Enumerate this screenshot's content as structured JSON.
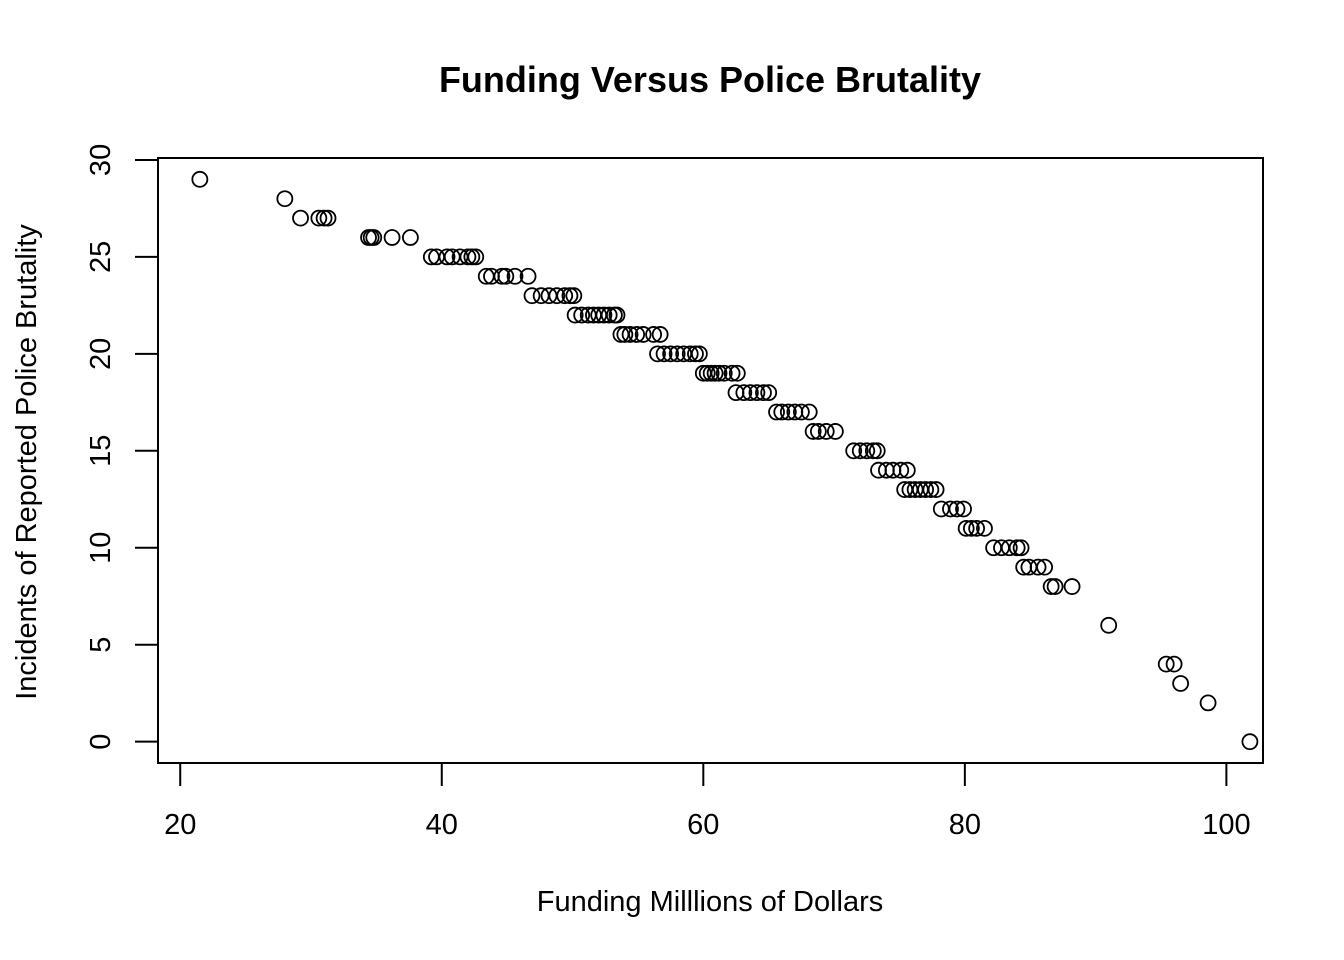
{
  "chart_data": {
    "type": "scatter",
    "title": "Funding Versus Police Brutality",
    "xlabel": "Funding Milllions of Dollars",
    "ylabel": "Incidents of Reported Police Brutality",
    "xlim": [
      18.3,
      102.8
    ],
    "ylim": [
      -1.1,
      30.1
    ],
    "x_ticks": [
      20,
      40,
      60,
      80,
      100
    ],
    "y_ticks": [
      0,
      5,
      10,
      15,
      20,
      25,
      30
    ],
    "grid": false,
    "legend": "none",
    "marker": "open-circle",
    "color": "#000000",
    "points": [
      {
        "x": 21.5,
        "y": 29
      },
      {
        "x": 28.0,
        "y": 28
      },
      {
        "x": 29.2,
        "y": 27
      },
      {
        "x": 30.6,
        "y": 27
      },
      {
        "x": 31.0,
        "y": 27
      },
      {
        "x": 31.3,
        "y": 27
      },
      {
        "x": 34.4,
        "y": 26
      },
      {
        "x": 34.6,
        "y": 26
      },
      {
        "x": 34.8,
        "y": 26
      },
      {
        "x": 36.2,
        "y": 26
      },
      {
        "x": 37.6,
        "y": 26
      },
      {
        "x": 39.2,
        "y": 25
      },
      {
        "x": 39.6,
        "y": 25
      },
      {
        "x": 40.4,
        "y": 25
      },
      {
        "x": 40.8,
        "y": 25
      },
      {
        "x": 41.4,
        "y": 25
      },
      {
        "x": 42.0,
        "y": 25
      },
      {
        "x": 42.3,
        "y": 25
      },
      {
        "x": 42.6,
        "y": 25
      },
      {
        "x": 43.4,
        "y": 24
      },
      {
        "x": 43.8,
        "y": 24
      },
      {
        "x": 44.6,
        "y": 24
      },
      {
        "x": 44.9,
        "y": 24
      },
      {
        "x": 45.6,
        "y": 24
      },
      {
        "x": 46.6,
        "y": 24
      },
      {
        "x": 46.9,
        "y": 23
      },
      {
        "x": 47.6,
        "y": 23
      },
      {
        "x": 48.2,
        "y": 23
      },
      {
        "x": 48.8,
        "y": 23
      },
      {
        "x": 49.4,
        "y": 23
      },
      {
        "x": 49.8,
        "y": 23
      },
      {
        "x": 50.1,
        "y": 23
      },
      {
        "x": 50.2,
        "y": 22
      },
      {
        "x": 50.7,
        "y": 22
      },
      {
        "x": 51.2,
        "y": 22
      },
      {
        "x": 51.6,
        "y": 22
      },
      {
        "x": 52.0,
        "y": 22
      },
      {
        "x": 52.4,
        "y": 22
      },
      {
        "x": 52.8,
        "y": 22
      },
      {
        "x": 53.2,
        "y": 22
      },
      {
        "x": 53.4,
        "y": 22
      },
      {
        "x": 53.7,
        "y": 21
      },
      {
        "x": 54.0,
        "y": 21
      },
      {
        "x": 54.4,
        "y": 21
      },
      {
        "x": 54.9,
        "y": 21
      },
      {
        "x": 55.4,
        "y": 21
      },
      {
        "x": 56.2,
        "y": 21
      },
      {
        "x": 56.7,
        "y": 21
      },
      {
        "x": 56.5,
        "y": 20
      },
      {
        "x": 57.0,
        "y": 20
      },
      {
        "x": 57.5,
        "y": 20
      },
      {
        "x": 58.0,
        "y": 20
      },
      {
        "x": 58.5,
        "y": 20
      },
      {
        "x": 59.0,
        "y": 20
      },
      {
        "x": 59.4,
        "y": 20
      },
      {
        "x": 59.7,
        "y": 20
      },
      {
        "x": 60.0,
        "y": 19
      },
      {
        "x": 60.3,
        "y": 19
      },
      {
        "x": 60.6,
        "y": 19
      },
      {
        "x": 60.9,
        "y": 19
      },
      {
        "x": 61.2,
        "y": 19
      },
      {
        "x": 61.6,
        "y": 19
      },
      {
        "x": 62.2,
        "y": 19
      },
      {
        "x": 62.6,
        "y": 19
      },
      {
        "x": 62.5,
        "y": 18
      },
      {
        "x": 63.1,
        "y": 18
      },
      {
        "x": 63.6,
        "y": 18
      },
      {
        "x": 64.1,
        "y": 18
      },
      {
        "x": 64.6,
        "y": 18
      },
      {
        "x": 65.0,
        "y": 18
      },
      {
        "x": 65.6,
        "y": 17
      },
      {
        "x": 66.0,
        "y": 17
      },
      {
        "x": 66.5,
        "y": 17
      },
      {
        "x": 67.0,
        "y": 17
      },
      {
        "x": 67.5,
        "y": 17
      },
      {
        "x": 68.1,
        "y": 17
      },
      {
        "x": 68.4,
        "y": 16
      },
      {
        "x": 68.8,
        "y": 16
      },
      {
        "x": 69.4,
        "y": 16
      },
      {
        "x": 70.1,
        "y": 16
      },
      {
        "x": 71.5,
        "y": 15
      },
      {
        "x": 72.0,
        "y": 15
      },
      {
        "x": 72.5,
        "y": 15
      },
      {
        "x": 73.0,
        "y": 15
      },
      {
        "x": 73.3,
        "y": 15
      },
      {
        "x": 73.4,
        "y": 14
      },
      {
        "x": 74.0,
        "y": 14
      },
      {
        "x": 74.5,
        "y": 14
      },
      {
        "x": 75.1,
        "y": 14
      },
      {
        "x": 75.6,
        "y": 14
      },
      {
        "x": 75.4,
        "y": 13
      },
      {
        "x": 75.8,
        "y": 13
      },
      {
        "x": 76.2,
        "y": 13
      },
      {
        "x": 76.6,
        "y": 13
      },
      {
        "x": 77.0,
        "y": 13
      },
      {
        "x": 77.4,
        "y": 13
      },
      {
        "x": 77.8,
        "y": 13
      },
      {
        "x": 78.2,
        "y": 12
      },
      {
        "x": 78.9,
        "y": 12
      },
      {
        "x": 79.4,
        "y": 12
      },
      {
        "x": 79.9,
        "y": 12
      },
      {
        "x": 80.1,
        "y": 11
      },
      {
        "x": 80.5,
        "y": 11
      },
      {
        "x": 80.9,
        "y": 11
      },
      {
        "x": 81.5,
        "y": 11
      },
      {
        "x": 82.2,
        "y": 10
      },
      {
        "x": 82.8,
        "y": 10
      },
      {
        "x": 83.4,
        "y": 10
      },
      {
        "x": 84.0,
        "y": 10
      },
      {
        "x": 84.3,
        "y": 10
      },
      {
        "x": 84.5,
        "y": 9
      },
      {
        "x": 84.9,
        "y": 9
      },
      {
        "x": 85.6,
        "y": 9
      },
      {
        "x": 86.1,
        "y": 9
      },
      {
        "x": 86.6,
        "y": 8
      },
      {
        "x": 86.9,
        "y": 8
      },
      {
        "x": 88.2,
        "y": 8
      },
      {
        "x": 91.0,
        "y": 6
      },
      {
        "x": 95.4,
        "y": 4
      },
      {
        "x": 96.0,
        "y": 4
      },
      {
        "x": 96.5,
        "y": 3
      },
      {
        "x": 98.6,
        "y": 2
      },
      {
        "x": 101.8,
        "y": 0
      }
    ]
  }
}
